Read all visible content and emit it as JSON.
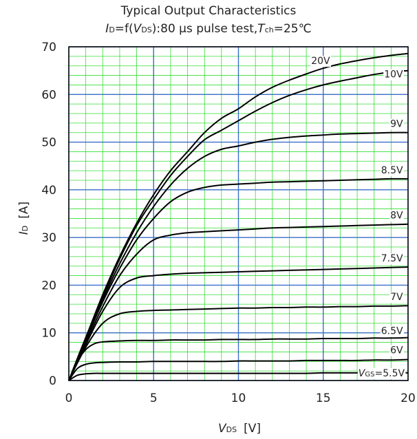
{
  "chart_data": {
    "type": "line",
    "title": "Typical Output Characteristics",
    "subtitle": "I_D=f(V_DS):80 µs pulse test,T_ch=25℃",
    "xlabel": "V_DS [V]",
    "ylabel": "I_D [A]",
    "xlim": [
      0,
      20
    ],
    "ylim": [
      0,
      70
    ],
    "x_ticks": [
      "0",
      "5",
      "10",
      "15",
      "20"
    ],
    "y_ticks": [
      "0",
      "10",
      "20",
      "30",
      "40",
      "50",
      "60",
      "70"
    ],
    "grid": true,
    "colors": {
      "major_grid": "#3a6ec8",
      "minor_grid": "#33dd33",
      "curve": "#000000"
    },
    "series": [
      {
        "name": "20V",
        "x": [
          0,
          1,
          2,
          3,
          4,
          5,
          6,
          7,
          8,
          9,
          10,
          11,
          12,
          13,
          14,
          15,
          16,
          17,
          18,
          19,
          20
        ],
        "y": [
          0,
          9,
          18,
          26,
          33,
          39,
          44,
          48,
          52,
          55,
          57,
          59.5,
          61.5,
          63,
          64.3,
          65.5,
          66.4,
          67.1,
          67.7,
          68.2,
          68.6
        ]
      },
      {
        "name": "10V",
        "x": [
          0,
          1,
          2,
          3,
          4,
          5,
          6,
          7,
          8,
          9,
          10,
          11,
          12,
          13,
          14,
          15,
          16,
          17,
          18,
          19,
          20
        ],
        "y": [
          0,
          9,
          17.5,
          25.5,
          32.5,
          38,
          43,
          47,
          50.5,
          52.5,
          54.5,
          56.5,
          58.3,
          59.8,
          61,
          62,
          62.8,
          63.5,
          64.2,
          64.7,
          65
        ]
      },
      {
        "name": "9V",
        "x": [
          0,
          1,
          2,
          3,
          4,
          5,
          6,
          7,
          8,
          9,
          10,
          11,
          12,
          13,
          14,
          15,
          16,
          17,
          18,
          19,
          20
        ],
        "y": [
          0,
          9,
          17,
          24.5,
          31,
          36.5,
          41,
          44.5,
          47,
          48.5,
          49.2,
          50,
          50.6,
          51,
          51.3,
          51.5,
          51.7,
          51.8,
          51.9,
          52,
          52
        ]
      },
      {
        "name": "8.5V",
        "x": [
          0,
          1,
          2,
          3,
          4,
          5,
          6,
          7,
          8,
          9,
          10,
          11,
          12,
          13,
          14,
          15,
          16,
          17,
          18,
          19,
          20
        ],
        "y": [
          0,
          8.5,
          16.5,
          23.5,
          29.5,
          34,
          37.5,
          39.5,
          40.5,
          41,
          41.2,
          41.4,
          41.6,
          41.7,
          41.8,
          41.9,
          42,
          42.1,
          42.2,
          42.3,
          42.3
        ]
      },
      {
        "name": "8V",
        "x": [
          0,
          1,
          2,
          3,
          4,
          5,
          6,
          7,
          8,
          9,
          10,
          11,
          12,
          13,
          14,
          15,
          16,
          17,
          18,
          19,
          20
        ],
        "y": [
          0,
          8,
          15.5,
          22,
          26.5,
          29.5,
          30.5,
          31,
          31.2,
          31.4,
          31.6,
          31.8,
          32,
          32.1,
          32.2,
          32.3,
          32.4,
          32.5,
          32.6,
          32.7,
          32.8
        ]
      },
      {
        "name": "7.5V",
        "x": [
          0,
          1,
          2,
          3,
          4,
          5,
          6,
          7,
          8,
          9,
          10,
          11,
          12,
          13,
          14,
          15,
          16,
          17,
          18,
          19,
          20
        ],
        "y": [
          0,
          7.5,
          14.5,
          19.5,
          21.5,
          22,
          22.3,
          22.5,
          22.6,
          22.7,
          22.8,
          22.9,
          23,
          23.1,
          23.2,
          23.3,
          23.4,
          23.5,
          23.6,
          23.7,
          23.8
        ]
      },
      {
        "name": "7V",
        "x": [
          0,
          1,
          2,
          3,
          4,
          5,
          6,
          7,
          8,
          9,
          10,
          11,
          12,
          13,
          14,
          15,
          16,
          17,
          18,
          19,
          20
        ],
        "y": [
          0,
          7,
          12,
          14,
          14.5,
          14.7,
          14.8,
          14.9,
          15,
          15.1,
          15.2,
          15.2,
          15.3,
          15.3,
          15.4,
          15.4,
          15.5,
          15.5,
          15.6,
          15.6,
          15.7
        ]
      },
      {
        "name": "6.5V",
        "x": [
          0,
          0.5,
          1,
          1.5,
          2,
          3,
          4,
          5,
          6,
          7,
          8,
          9,
          10,
          11,
          12,
          13,
          14,
          15,
          16,
          17,
          18,
          19,
          20
        ],
        "y": [
          0,
          4,
          6.5,
          7.7,
          8.1,
          8.3,
          8.4,
          8.4,
          8.5,
          8.5,
          8.5,
          8.6,
          8.6,
          8.6,
          8.7,
          8.7,
          8.7,
          8.8,
          8.8,
          8.8,
          8.9,
          8.9,
          9
        ]
      },
      {
        "name": "6V",
        "x": [
          0,
          0.5,
          1,
          1.5,
          2,
          3,
          4,
          5,
          6,
          7,
          8,
          9,
          10,
          11,
          12,
          13,
          14,
          15,
          16,
          17,
          18,
          19,
          20
        ],
        "y": [
          0,
          2.5,
          3.4,
          3.7,
          3.8,
          3.9,
          3.9,
          4,
          4,
          4,
          4,
          4,
          4.1,
          4.1,
          4.1,
          4.1,
          4.2,
          4.2,
          4.2,
          4.2,
          4.3,
          4.3,
          4.4
        ]
      },
      {
        "name": "VGS=5.5V",
        "x": [
          0,
          0.5,
          1,
          1.5,
          2,
          3,
          4,
          5,
          6,
          7,
          8,
          9,
          10,
          11,
          12,
          13,
          14,
          15,
          16,
          17,
          18,
          19,
          20
        ],
        "y": [
          0,
          1.1,
          1.4,
          1.5,
          1.5,
          1.5,
          1.5,
          1.5,
          1.5,
          1.5,
          1.5,
          1.5,
          1.5,
          1.5,
          1.5,
          1.5,
          1.5,
          1.6,
          1.6,
          1.6,
          1.6,
          1.6,
          1.6
        ]
      }
    ]
  }
}
